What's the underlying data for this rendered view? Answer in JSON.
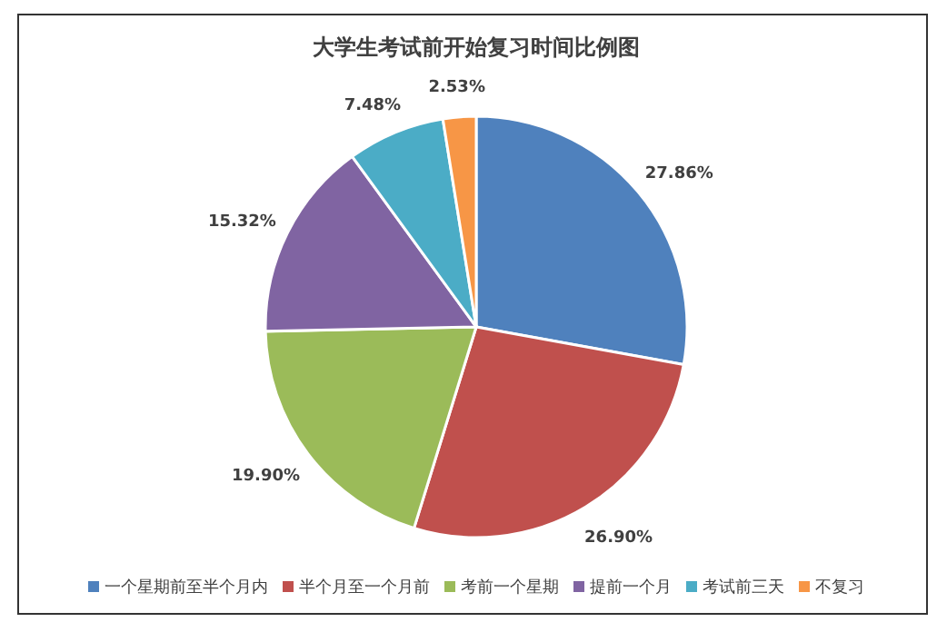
{
  "chart_data": {
    "type": "pie",
    "title": "大学生考试前开始复习时间比例图",
    "categories": [
      "一个星期前至半个月内",
      "半个月至一个月前",
      "考前一个星期",
      "提前一个月",
      "考试前三天",
      "不复习"
    ],
    "values": [
      27.86,
      26.9,
      19.9,
      15.32,
      7.48,
      2.53
    ],
    "value_labels": [
      "27.86%",
      "26.90%",
      "19.90%",
      "15.32%",
      "7.48%",
      "2.53%"
    ],
    "colors": [
      "#4f81bd",
      "#c0504d",
      "#9bbb59",
      "#8064a2",
      "#4bacc6",
      "#f79646"
    ],
    "legend": "bottom"
  }
}
